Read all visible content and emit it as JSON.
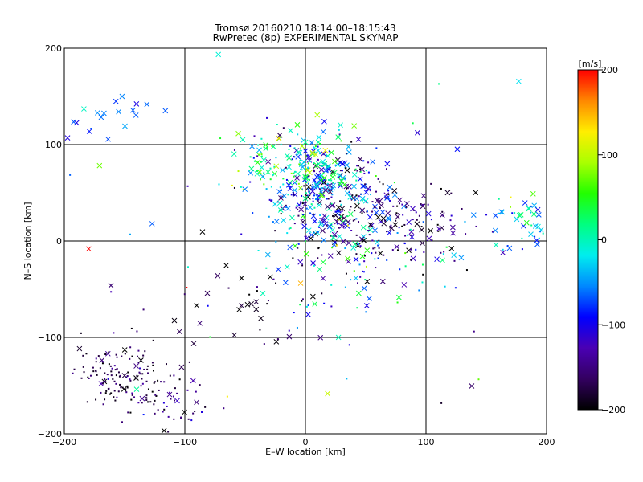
{
  "chart_data": {
    "type": "scatter",
    "title": "Tromsø 20160210 18:14:00–18:15:43",
    "subtitle": "RwPretec (8p) EXPERIMENTAL SKYMAP",
    "xlabel": "E–W location [km]",
    "ylabel": "N–S location [km]",
    "xlim": [
      -200,
      200
    ],
    "ylim": [
      -200,
      200
    ],
    "xticks": [
      -200,
      -100,
      0,
      100,
      200
    ],
    "yticks": [
      -200,
      -100,
      0,
      100,
      200
    ],
    "x_tick_labels": [
      "−200",
      "−100",
      "0",
      "100",
      "200"
    ],
    "y_tick_labels": [
      "−200",
      "−100",
      "0",
      "100",
      "200"
    ],
    "grid_lines": [
      -100,
      0,
      100
    ],
    "grid": true,
    "markers": [
      "cross",
      "dot"
    ],
    "colorbar": {
      "label": "[m/s]",
      "range": [
        -200,
        200
      ],
      "ticks": [
        200,
        100,
        0,
        -100,
        -200
      ],
      "tick_labels": [
        "200",
        "100",
        "0",
        "−100",
        "−200"
      ],
      "colormap": [
        "#000000",
        "#330060",
        "#4a00b4",
        "#0000ff",
        "#0088ff",
        "#00eeee",
        "#00ff80",
        "#22ff00",
        "#aaff00",
        "#ffee00",
        "#ff8800",
        "#ff0000"
      ]
    },
    "clusters": [
      {
        "center": [
          20,
          50
        ],
        "spread": [
          22,
          25
        ],
        "count": 320,
        "velocity_mean": -80,
        "velocity_spread": 70,
        "cross_fraction": 0.45
      },
      {
        "center": [
          -15,
          80
        ],
        "spread": [
          22,
          20
        ],
        "count": 140,
        "velocity_mean": 10,
        "velocity_spread": 60,
        "cross_fraction": 0.55
      },
      {
        "center": [
          70,
          20
        ],
        "spread": [
          30,
          25
        ],
        "count": 160,
        "velocity_mean": -150,
        "velocity_spread": 40,
        "cross_fraction": 0.35
      },
      {
        "center": [
          -150,
          -140
        ],
        "spread": [
          18,
          18
        ],
        "count": 140,
        "velocity_mean": -175,
        "velocity_spread": 25,
        "cross_fraction": 0.1
      },
      {
        "center": [
          -110,
          -165
        ],
        "spread": [
          15,
          20
        ],
        "count": 50,
        "velocity_mean": -160,
        "velocity_spread": 30,
        "cross_fraction": 0.1
      },
      {
        "center": [
          -160,
          125
        ],
        "spread": [
          25,
          10
        ],
        "count": 20,
        "velocity_mean": -70,
        "velocity_spread": 20,
        "cross_fraction": 0.9
      },
      {
        "center": [
          180,
          20
        ],
        "spread": [
          20,
          15
        ],
        "count": 55,
        "velocity_mean": -20,
        "velocity_spread": 60,
        "cross_fraction": 0.6
      },
      {
        "center": [
          30,
          -20
        ],
        "spread": [
          45,
          40
        ],
        "count": 120,
        "velocity_mean": -60,
        "velocity_spread": 90,
        "cross_fraction": 0.4
      },
      {
        "center": [
          -55,
          -70
        ],
        "spread": [
          30,
          25
        ],
        "count": 25,
        "velocity_mean": -180,
        "velocity_spread": 30,
        "cross_fraction": 0.8
      },
      {
        "center": [
          0,
          0
        ],
        "spread": [
          110,
          110
        ],
        "count": 70,
        "velocity_mean": -40,
        "velocity_spread": 120,
        "cross_fraction": 0.3
      }
    ]
  }
}
